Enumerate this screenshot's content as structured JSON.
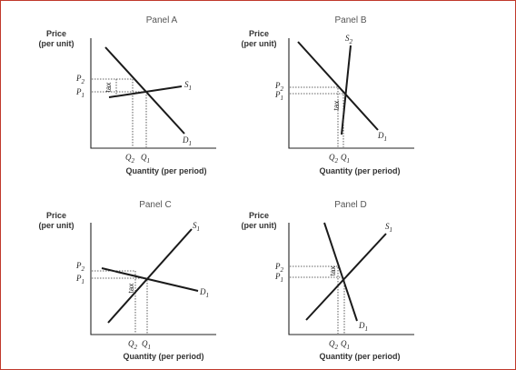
{
  "colors": {
    "border": "#c0392b",
    "ink": "#1a1a1a"
  },
  "axis_text": {
    "price": "Price",
    "per_unit": "(per unit)",
    "quantity": "Quantity (per period)"
  },
  "panels": [
    {
      "title": "Panel A",
      "p_high": "P",
      "p_high_sub": "2",
      "p_low": "P",
      "p_low_sub": "1",
      "q_left": "Q",
      "q_left_sub": "2",
      "q_right": "Q",
      "q_right_sub": "1",
      "tax": "tax",
      "supply": "S",
      "supply_sub": "1",
      "demand": "D",
      "demand_sub": "1"
    },
    {
      "title": "Panel B",
      "p_high": "P",
      "p_high_sub": "2",
      "p_low": "P",
      "p_low_sub": "1",
      "q_left": "Q",
      "q_left_sub": "2",
      "q_right": "Q",
      "q_right_sub": "1",
      "tax": "tax",
      "supply": "S",
      "supply_sub": "2",
      "demand": "D",
      "demand_sub": "1"
    },
    {
      "title": "Panel C",
      "p_high": "P",
      "p_high_sub": "2",
      "p_low": "P",
      "p_low_sub": "1",
      "q_left": "Q",
      "q_left_sub": "2",
      "q_right": "Q",
      "q_right_sub": "1",
      "tax": "tax",
      "supply": "S",
      "supply_sub": "1",
      "demand": "D",
      "demand_sub": "1"
    },
    {
      "title": "Panel D",
      "p_high": "P",
      "p_high_sub": "2",
      "p_low": "P",
      "p_low_sub": "1",
      "q_left": "Q",
      "q_left_sub": "2",
      "q_right": "Q",
      "q_right_sub": "1",
      "tax": "tax",
      "supply": "S",
      "supply_sub": "1",
      "demand": "D",
      "demand_sub": "1"
    }
  ]
}
